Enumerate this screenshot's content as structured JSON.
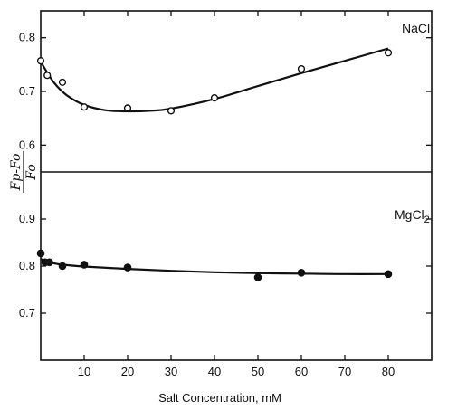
{
  "chart_data": [
    {
      "type": "scatter",
      "panel": "top",
      "annotation": "NaCl",
      "xlabel": "Salt Concentration, mM",
      "ylabel": "Fp-Fo / Fo",
      "xlim": [
        0,
        90
      ],
      "ylim": [
        0.55,
        0.85
      ],
      "xticks": [
        10,
        20,
        30,
        40,
        50,
        60,
        70,
        80
      ],
      "yticks": [
        0.6,
        0.7,
        0.8
      ],
      "marker": "open-circle",
      "points": {
        "x": [
          0,
          1.5,
          5,
          10,
          20,
          30,
          40,
          60,
          80
        ],
        "y": [
          0.757,
          0.73,
          0.717,
          0.671,
          0.669,
          0.664,
          0.688,
          0.742,
          0.772
        ]
      },
      "fit_curve": {
        "x": [
          0,
          3,
          6,
          10,
          15,
          20,
          25,
          30,
          40,
          50,
          60,
          70,
          80
        ],
        "y": [
          0.755,
          0.717,
          0.693,
          0.675,
          0.665,
          0.663,
          0.664,
          0.668,
          0.686,
          0.71,
          0.734,
          0.757,
          0.78
        ]
      }
    },
    {
      "type": "scatter",
      "panel": "bottom",
      "annotation": "MgCl2",
      "xlim": [
        0,
        90
      ],
      "ylim": [
        0.6,
        1.0
      ],
      "xticks": [
        10,
        20,
        30,
        40,
        50,
        60,
        70,
        80
      ],
      "yticks": [
        0.7,
        0.8,
        0.9
      ],
      "marker": "filled-circle",
      "points": {
        "x": [
          0,
          1,
          2,
          5,
          10,
          20,
          50,
          60,
          80
        ],
        "y": [
          0.827,
          0.808,
          0.808,
          0.8,
          0.803,
          0.797,
          0.776,
          0.786,
          0.783
        ]
      },
      "fit_curve": {
        "x": [
          0,
          2,
          5,
          10,
          20,
          30,
          40,
          50,
          60,
          70,
          80
        ],
        "y": [
          0.815,
          0.808,
          0.803,
          0.799,
          0.794,
          0.79,
          0.787,
          0.785,
          0.784,
          0.783,
          0.783
        ]
      }
    }
  ],
  "figure": {
    "top_annotation_base": "NaCl",
    "bottom_annotation_base": "MgCl",
    "bottom_annotation_sub": "2",
    "xlabel": "Salt Concentration, mM",
    "ylabel_numerator": "Fp-Fo",
    "ylabel_denominator": "Fo"
  }
}
